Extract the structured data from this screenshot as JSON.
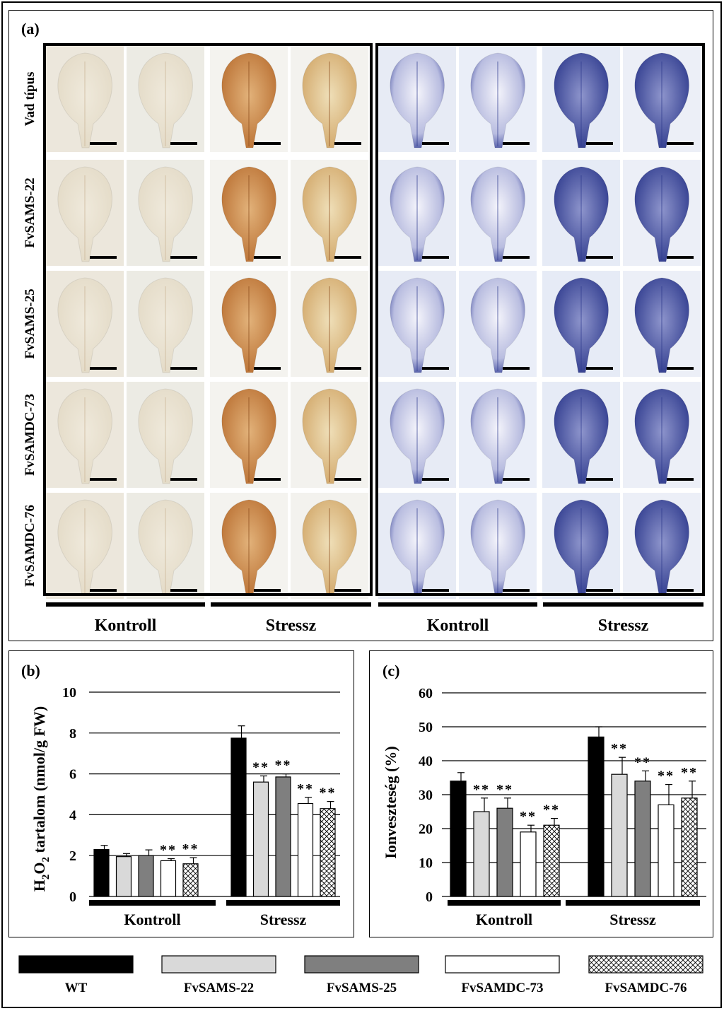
{
  "panel_a": {
    "label": "(a)",
    "row_labels": [
      "Vad típus",
      "FvSAMS-22",
      "FvSAMS-25",
      "FvSAMDC-73",
      "FvSAMDC-76"
    ],
    "group_labels": [
      "Kontroll",
      "Stressz",
      "Kontroll",
      "Stressz"
    ]
  },
  "legend": {
    "items": [
      {
        "label": "WT",
        "fill": "#000000"
      },
      {
        "label": "FvSAMS-22",
        "fill": "#d9d9d9"
      },
      {
        "label": "FvSAMS-25",
        "fill": "#7f7f7f"
      },
      {
        "label": "FvSAMDC-73",
        "fill": "#ffffff"
      },
      {
        "label": "FvSAMDC-76",
        "fill": "hatch"
      }
    ]
  },
  "chart_data": [
    {
      "type": "bar",
      "panel_label": "(b)",
      "ylabel_main": "H",
      "ylabel_sub": "2",
      "ylabel_mid": "O",
      "ylabel_sub2": "2",
      "ylabel_rest": " tartalom (nmol/g FW)",
      "categories": [
        "Kontroll",
        "Stressz"
      ],
      "ylim": [
        0,
        10
      ],
      "yticks": [
        0,
        2,
        4,
        6,
        8,
        10
      ],
      "grid": true,
      "series": [
        {
          "name": "WT",
          "values": [
            2.3,
            7.75
          ],
          "errors": [
            0.2,
            0.6
          ]
        },
        {
          "name": "FvSAMS-22",
          "values": [
            1.95,
            5.6
          ],
          "errors": [
            0.15,
            0.3
          ]
        },
        {
          "name": "FvSAMS-25",
          "values": [
            2.0,
            5.85
          ],
          "errors": [
            0.28,
            0.15
          ]
        },
        {
          "name": "FvSAMDC-73",
          "values": [
            1.75,
            4.55
          ],
          "errors": [
            0.1,
            0.3
          ]
        },
        {
          "name": "FvSAMDC-76",
          "values": [
            1.6,
            4.3
          ],
          "errors": [
            0.3,
            0.35
          ]
        }
      ],
      "significance": [
        [
          "",
          "",
          "",
          "**",
          "**"
        ],
        [
          "",
          "**",
          "**",
          "**",
          "**"
        ]
      ]
    },
    {
      "type": "bar",
      "panel_label": "(c)",
      "ylabel": "Ionveszteség (%)",
      "categories": [
        "Kontroll",
        "Stressz"
      ],
      "ylim": [
        0,
        60
      ],
      "yticks": [
        0,
        10,
        20,
        30,
        40,
        50,
        60
      ],
      "grid": true,
      "series": [
        {
          "name": "WT",
          "values": [
            34,
            47
          ],
          "errors": [
            2.5,
            3
          ]
        },
        {
          "name": "FvSAMS-22",
          "values": [
            25,
            36
          ],
          "errors": [
            4,
            5
          ]
        },
        {
          "name": "FvSAMS-25",
          "values": [
            26,
            34
          ],
          "errors": [
            3,
            3
          ]
        },
        {
          "name": "FvSAMDC-73",
          "values": [
            19,
            27
          ],
          "errors": [
            2,
            6
          ]
        },
        {
          "name": "FvSAMDC-76",
          "values": [
            21,
            29
          ],
          "errors": [
            2,
            5
          ]
        }
      ],
      "significance": [
        [
          "",
          "**",
          "**",
          "**",
          "**"
        ],
        [
          "",
          "**",
          "**",
          "**",
          "**"
        ]
      ]
    }
  ]
}
